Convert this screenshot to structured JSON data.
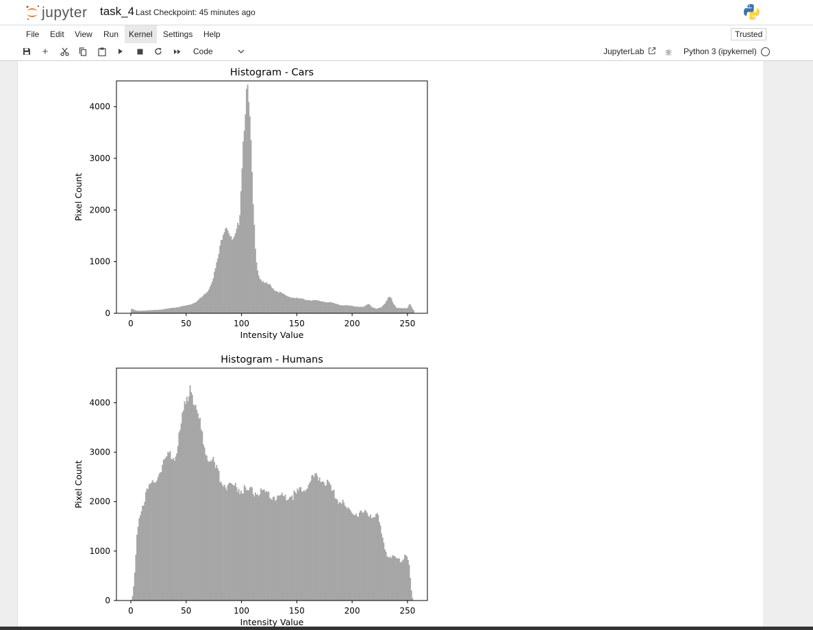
{
  "header": {
    "app_name": "jupyter",
    "notebook_title": "task_4",
    "checkpoint": "Last Checkpoint: 45 minutes ago"
  },
  "menu": {
    "items": [
      "File",
      "Edit",
      "View",
      "Run",
      "Kernel",
      "Settings",
      "Help"
    ],
    "active": "Kernel",
    "trusted_label": "Trusted"
  },
  "toolbar": {
    "icons": [
      "save-icon",
      "add-cell-icon",
      "cut-icon",
      "copy-icon",
      "paste-icon",
      "run-icon",
      "stop-icon",
      "restart-icon",
      "fast-forward-icon"
    ],
    "cell_type": "Code",
    "jupyterlab_label": "JupyterLab",
    "kernel_name": "Python 3 (ipykernel)"
  },
  "colors": {
    "bar": "#a6a6a6",
    "logo_orange": "#f37726",
    "active_menu": "#e8e8e8"
  },
  "chart_data": [
    {
      "type": "bar",
      "title": "Histogram - Cars",
      "xlabel": "Intensity Value",
      "ylabel": "Pixel Count",
      "xlim": [
        -13,
        268
      ],
      "ylim": [
        0,
        4500
      ],
      "xticks": [
        0,
        50,
        100,
        150,
        200,
        250
      ],
      "yticks": [
        0,
        1000,
        2000,
        3000,
        4000
      ],
      "bin_width": 1,
      "x": [
        0,
        5,
        10,
        20,
        30,
        40,
        45,
        50,
        55,
        60,
        65,
        70,
        72,
        75,
        78,
        80,
        82,
        84,
        86,
        88,
        90,
        92,
        94,
        96,
        98,
        99,
        100,
        102,
        104,
        105,
        106,
        108,
        110,
        112,
        114,
        116,
        118,
        120,
        125,
        130,
        135,
        140,
        145,
        150,
        160,
        170,
        180,
        190,
        200,
        205,
        210,
        215,
        218,
        222,
        226,
        230,
        233,
        235,
        237,
        240,
        245,
        250,
        252,
        255
      ],
      "values": [
        90,
        50,
        50,
        60,
        80,
        110,
        130,
        150,
        180,
        240,
        330,
        450,
        550,
        740,
        1000,
        1200,
        1450,
        1620,
        1720,
        1640,
        1450,
        1400,
        1450,
        1620,
        1840,
        2150,
        2700,
        3550,
        4180,
        4300,
        4180,
        3550,
        2300,
        1450,
        900,
        700,
        640,
        580,
        560,
        450,
        400,
        340,
        310,
        290,
        260,
        240,
        210,
        160,
        140,
        130,
        120,
        180,
        120,
        90,
        110,
        190,
        330,
        320,
        200,
        100,
        100,
        100,
        200,
        60
      ]
    },
    {
      "type": "bar",
      "title": "Histogram - Humans",
      "xlabel": "Intensity Value",
      "ylabel": "Pixel Count",
      "xlim": [
        -13,
        268
      ],
      "ylim": [
        0,
        4700
      ],
      "xticks": [
        0,
        50,
        100,
        150,
        200,
        250
      ],
      "yticks": [
        0,
        1000,
        2000,
        3000,
        4000
      ],
      "bin_width": 1,
      "x": [
        0,
        1,
        2,
        3,
        4,
        5,
        6,
        8,
        10,
        12,
        15,
        18,
        20,
        25,
        30,
        35,
        40,
        43,
        45,
        48,
        50,
        52,
        53,
        55,
        57,
        60,
        63,
        65,
        68,
        70,
        75,
        80,
        85,
        90,
        95,
        100,
        110,
        120,
        130,
        140,
        150,
        155,
        160,
        165,
        170,
        175,
        180,
        185,
        190,
        195,
        200,
        210,
        220,
        223,
        226,
        229,
        232,
        235,
        240,
        245,
        248,
        250,
        251,
        252,
        253,
        254,
        255
      ],
      "values": [
        0,
        20,
        150,
        400,
        700,
        1100,
        1500,
        1750,
        1900,
        2050,
        2200,
        2300,
        2350,
        2600,
        2800,
        2950,
        2950,
        3200,
        3500,
        3800,
        4000,
        4200,
        4450,
        4300,
        4100,
        3800,
        3500,
        3250,
        3050,
        2950,
        2750,
        2500,
        2350,
        2350,
        2300,
        2250,
        2200,
        2150,
        2100,
        2100,
        2150,
        2250,
        2350,
        2450,
        2500,
        2450,
        2250,
        2100,
        2000,
        1850,
        1800,
        1750,
        1750,
        1700,
        1400,
        1100,
        900,
        900,
        850,
        800,
        950,
        900,
        800,
        600,
        300,
        100,
        0
      ]
    }
  ]
}
